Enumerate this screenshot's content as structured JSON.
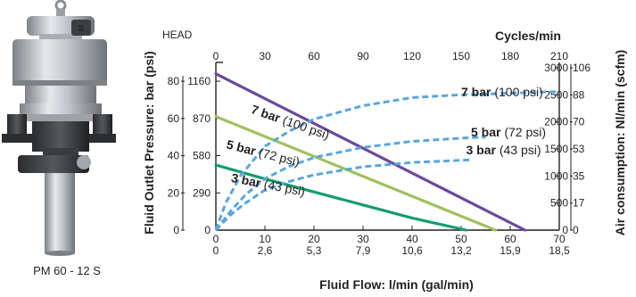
{
  "product": {
    "caption": "PM 60 - 12 S"
  },
  "chart_data": {
    "type": "line",
    "head_label": "HEAD",
    "top_axis": {
      "label": "Cycles/min",
      "ticks": [
        "0",
        "30",
        "60",
        "90",
        "120",
        "150",
        "180",
        "210"
      ],
      "range": [
        0,
        210
      ]
    },
    "bottom_axis": {
      "label": "Fluid Flow: l/min (gal/min)",
      "ticks_lmin": [
        "0",
        "10",
        "20",
        "30",
        "40",
        "50",
        "60",
        "70"
      ],
      "ticks_gal": [
        "0",
        "2,6",
        "5,3",
        "7,9",
        "10,6",
        "13,2",
        "15,9",
        "18,5"
      ],
      "range": [
        0,
        70
      ]
    },
    "left_axis": {
      "label": "Fluid Outlet Pressure: bar (psi)",
      "ticks_bar": [
        "0",
        "20",
        "40",
        "60",
        "80"
      ],
      "ticks_psi": [
        "0",
        "290",
        "580",
        "870",
        "1160"
      ],
      "range": [
        0,
        92
      ]
    },
    "right_axis": {
      "label": "Air consumption: Nl/min (scfm)",
      "ticks_nl": [
        "0",
        "500",
        "1000",
        "1500",
        "2000",
        "2500",
        "3000"
      ],
      "ticks_scfm": [
        "0",
        "17",
        "35",
        "53",
        "70",
        "88",
        "106"
      ],
      "range": [
        0,
        3000
      ]
    },
    "series": [
      {
        "name": "7 bar (100 psi)",
        "kind": "pressure",
        "color": "#6b4a9a",
        "x": [
          0,
          63
        ],
        "y": [
          84,
          0
        ]
      },
      {
        "name": "5 bar (72 psi)",
        "kind": "pressure",
        "color": "#9fc15e",
        "x": [
          0,
          57
        ],
        "y": [
          61,
          0
        ]
      },
      {
        "name": "3 bar (43 psi)",
        "kind": "pressure",
        "color": "#139d6b",
        "x": [
          0,
          10,
          20,
          30,
          40,
          51
        ],
        "y": [
          35,
          27.5,
          20.5,
          13.5,
          6.5,
          0
        ]
      },
      {
        "name": "7 bar (100 psi)",
        "kind": "air",
        "color": "#5ba6dc",
        "x": [
          0,
          2,
          5,
          10,
          15,
          20,
          30,
          40,
          50,
          60,
          70
        ],
        "y": [
          0,
          500,
          1000,
          1550,
          1830,
          2050,
          2300,
          2450,
          2500,
          2530,
          2560
        ]
      },
      {
        "name": "5 bar (72 psi)",
        "kind": "air",
        "color": "#5ba6dc",
        "x": [
          0,
          3,
          6,
          10,
          15,
          20,
          30,
          40,
          50,
          55
        ],
        "y": [
          0,
          350,
          650,
          950,
          1180,
          1340,
          1530,
          1640,
          1700,
          1720
        ]
      },
      {
        "name": "3 bar (43 psi)",
        "kind": "air",
        "color": "#5ba6dc",
        "x": [
          0,
          3,
          6,
          10,
          15,
          20,
          30,
          40,
          50,
          52
        ],
        "y": [
          0,
          280,
          500,
          740,
          900,
          1020,
          1170,
          1250,
          1290,
          1300
        ]
      }
    ],
    "line_labels": [
      {
        "bar": "7 bar",
        "psi": "(100 psi)",
        "bold_psi": true,
        "target": "pressure-7"
      },
      {
        "bar": "5 bar",
        "psi": "(72 psi)",
        "bold_psi": true,
        "target": "pressure-5"
      },
      {
        "bar": "3 bar",
        "psi": "(43 psi)",
        "bold_psi": true,
        "target": "pressure-3"
      },
      {
        "bar": "7 bar",
        "psi": "(100 psi)",
        "bold_psi": false,
        "target": "air-7"
      },
      {
        "bar": "5 bar",
        "psi": "(72 psi)",
        "bold_psi": false,
        "target": "air-5"
      },
      {
        "bar": "3 bar",
        "psi": "(43 psi)",
        "bold_psi": false,
        "target": "air-3"
      }
    ],
    "grid": false
  }
}
